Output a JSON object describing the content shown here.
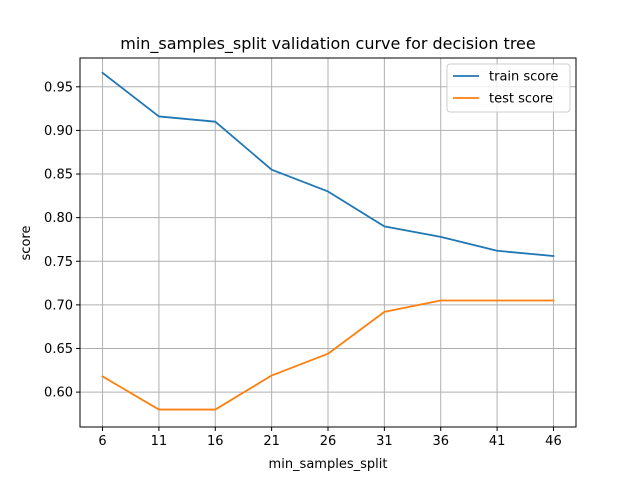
{
  "chart_data": {
    "type": "line",
    "title": "min_samples_split validation curve for decision tree",
    "xlabel": "min_samples_split",
    "ylabel": "score",
    "x": [
      6,
      11,
      16,
      21,
      26,
      31,
      36,
      41,
      46
    ],
    "xticks": [
      "6",
      "11",
      "16",
      "21",
      "26",
      "31",
      "36",
      "41",
      "46"
    ],
    "yticks": [
      "0.60",
      "0.65",
      "0.70",
      "0.75",
      "0.80",
      "0.85",
      "0.90",
      "0.95"
    ],
    "ylim": [
      0.56,
      0.983
    ],
    "xlim": [
      4,
      48
    ],
    "grid": true,
    "legend_position": "top-right",
    "series": [
      {
        "name": "train score",
        "color": "#1f77b4",
        "values": [
          0.966,
          0.916,
          0.91,
          0.855,
          0.83,
          0.79,
          0.778,
          0.762,
          0.756
        ]
      },
      {
        "name": "test score",
        "color": "#ff7f0e",
        "values": [
          0.618,
          0.58,
          0.58,
          0.619,
          0.644,
          0.692,
          0.705,
          0.705,
          0.705
        ]
      }
    ]
  }
}
